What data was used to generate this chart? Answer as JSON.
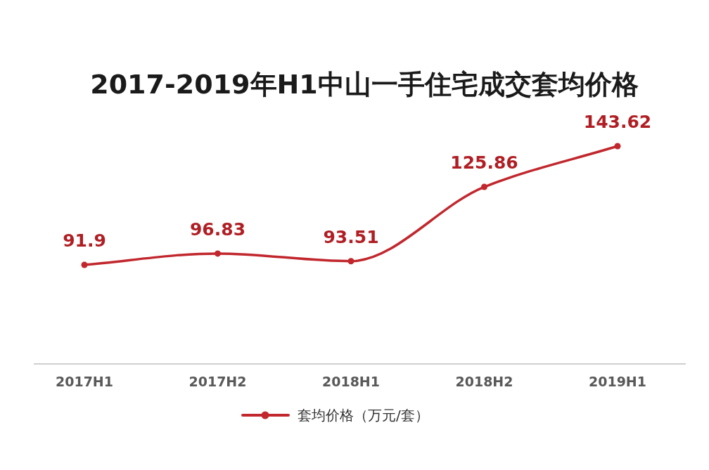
{
  "chart_data": {
    "type": "line",
    "title": "2017-2019年H1中山一手住宅成交套均价格",
    "categories": [
      "2017H1",
      "2017H2",
      "2018H1",
      "2018H2",
      "2019H1"
    ],
    "series": [
      {
        "name": "套均价格（万元/套）",
        "color": "#c1272d",
        "values": [
          91.9,
          96.83,
          93.51,
          125.86,
          143.62
        ]
      }
    ],
    "data_labels": true,
    "legend": "bottom",
    "marker": "circle"
  }
}
